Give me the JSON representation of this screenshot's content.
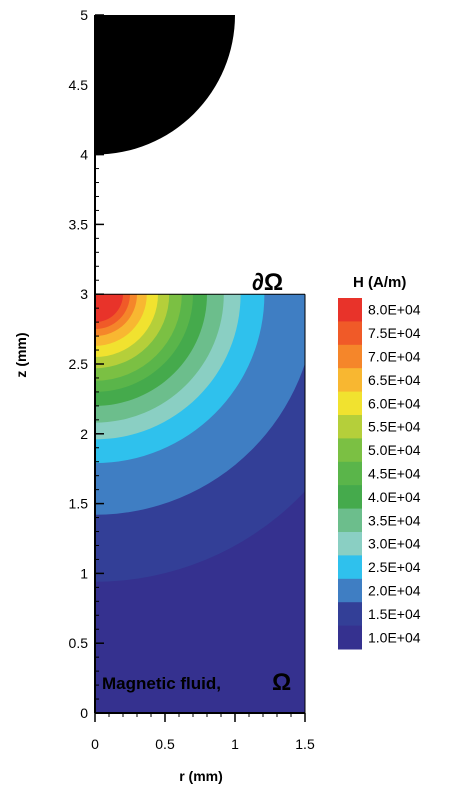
{
  "chart_data": {
    "type": "contour",
    "xlabel": "r (mm)",
    "ylabel": "z (mm)",
    "xlim": [
      0,
      1.5
    ],
    "ylim": [
      0,
      5
    ],
    "x_ticks": [
      "0",
      "0.5",
      "1",
      "1.5"
    ],
    "y_ticks": [
      "0",
      "0.5",
      "1",
      "1.5",
      "2",
      "2.5",
      "3",
      "3.5",
      "4",
      "4.5",
      "5"
    ],
    "legend": {
      "title": "H (A/m)",
      "levels": [
        "8.0E+04",
        "7.5E+04",
        "7.0E+04",
        "6.5E+04",
        "6.0E+04",
        "5.5E+04",
        "5.0E+04",
        "4.5E+04",
        "4.0E+04",
        "3.5E+04",
        "3.0E+04",
        "2.5E+04",
        "2.0E+04",
        "1.5E+04",
        "1.0E+04"
      ],
      "colors": [
        "#e8332a",
        "#f05a28",
        "#f5862a",
        "#f8b731",
        "#f1e22f",
        "#b5cf3a",
        "#7bc043",
        "#5ab54a",
        "#45aa4c",
        "#6cbe8c",
        "#8acfc3",
        "#2fc1ed",
        "#3f7ec3",
        "#333f97",
        "#35318f"
      ]
    },
    "contour_bands": [
      {
        "level": "8.0E+04",
        "radius_mm": 0.2
      },
      {
        "level": "7.5E+04",
        "radius_mm": 0.25
      },
      {
        "level": "7.0E+04",
        "radius_mm": 0.3
      },
      {
        "level": "6.5E+04",
        "radius_mm": 0.37
      },
      {
        "level": "6.0E+04",
        "radius_mm": 0.45
      },
      {
        "level": "5.5E+04",
        "radius_mm": 0.53
      },
      {
        "level": "5.0E+04",
        "radius_mm": 0.62
      },
      {
        "level": "4.5E+04",
        "radius_mm": 0.7
      },
      {
        "level": "4.0E+04",
        "radius_mm": 0.8
      },
      {
        "level": "3.5E+04",
        "radius_mm": 0.92
      },
      {
        "level": "3.0E+04",
        "radius_mm": 1.04
      },
      {
        "level": "2.5E+04",
        "radius_mm": 1.21
      },
      {
        "level": "2.0E+04",
        "radius_mm": 1.58
      },
      {
        "level": "1.5E+04",
        "radius_mm": 2.06
      }
    ],
    "magnet": {
      "center": [
        0,
        5
      ],
      "radius_mm": 1.0
    },
    "fluid_region": {
      "r": [
        0,
        1.5
      ],
      "z": [
        0,
        3
      ]
    },
    "annotations": [
      {
        "text": "∂Ω"
      },
      {
        "text": "Magnetic fluid,"
      },
      {
        "text": "Ω"
      }
    ]
  }
}
